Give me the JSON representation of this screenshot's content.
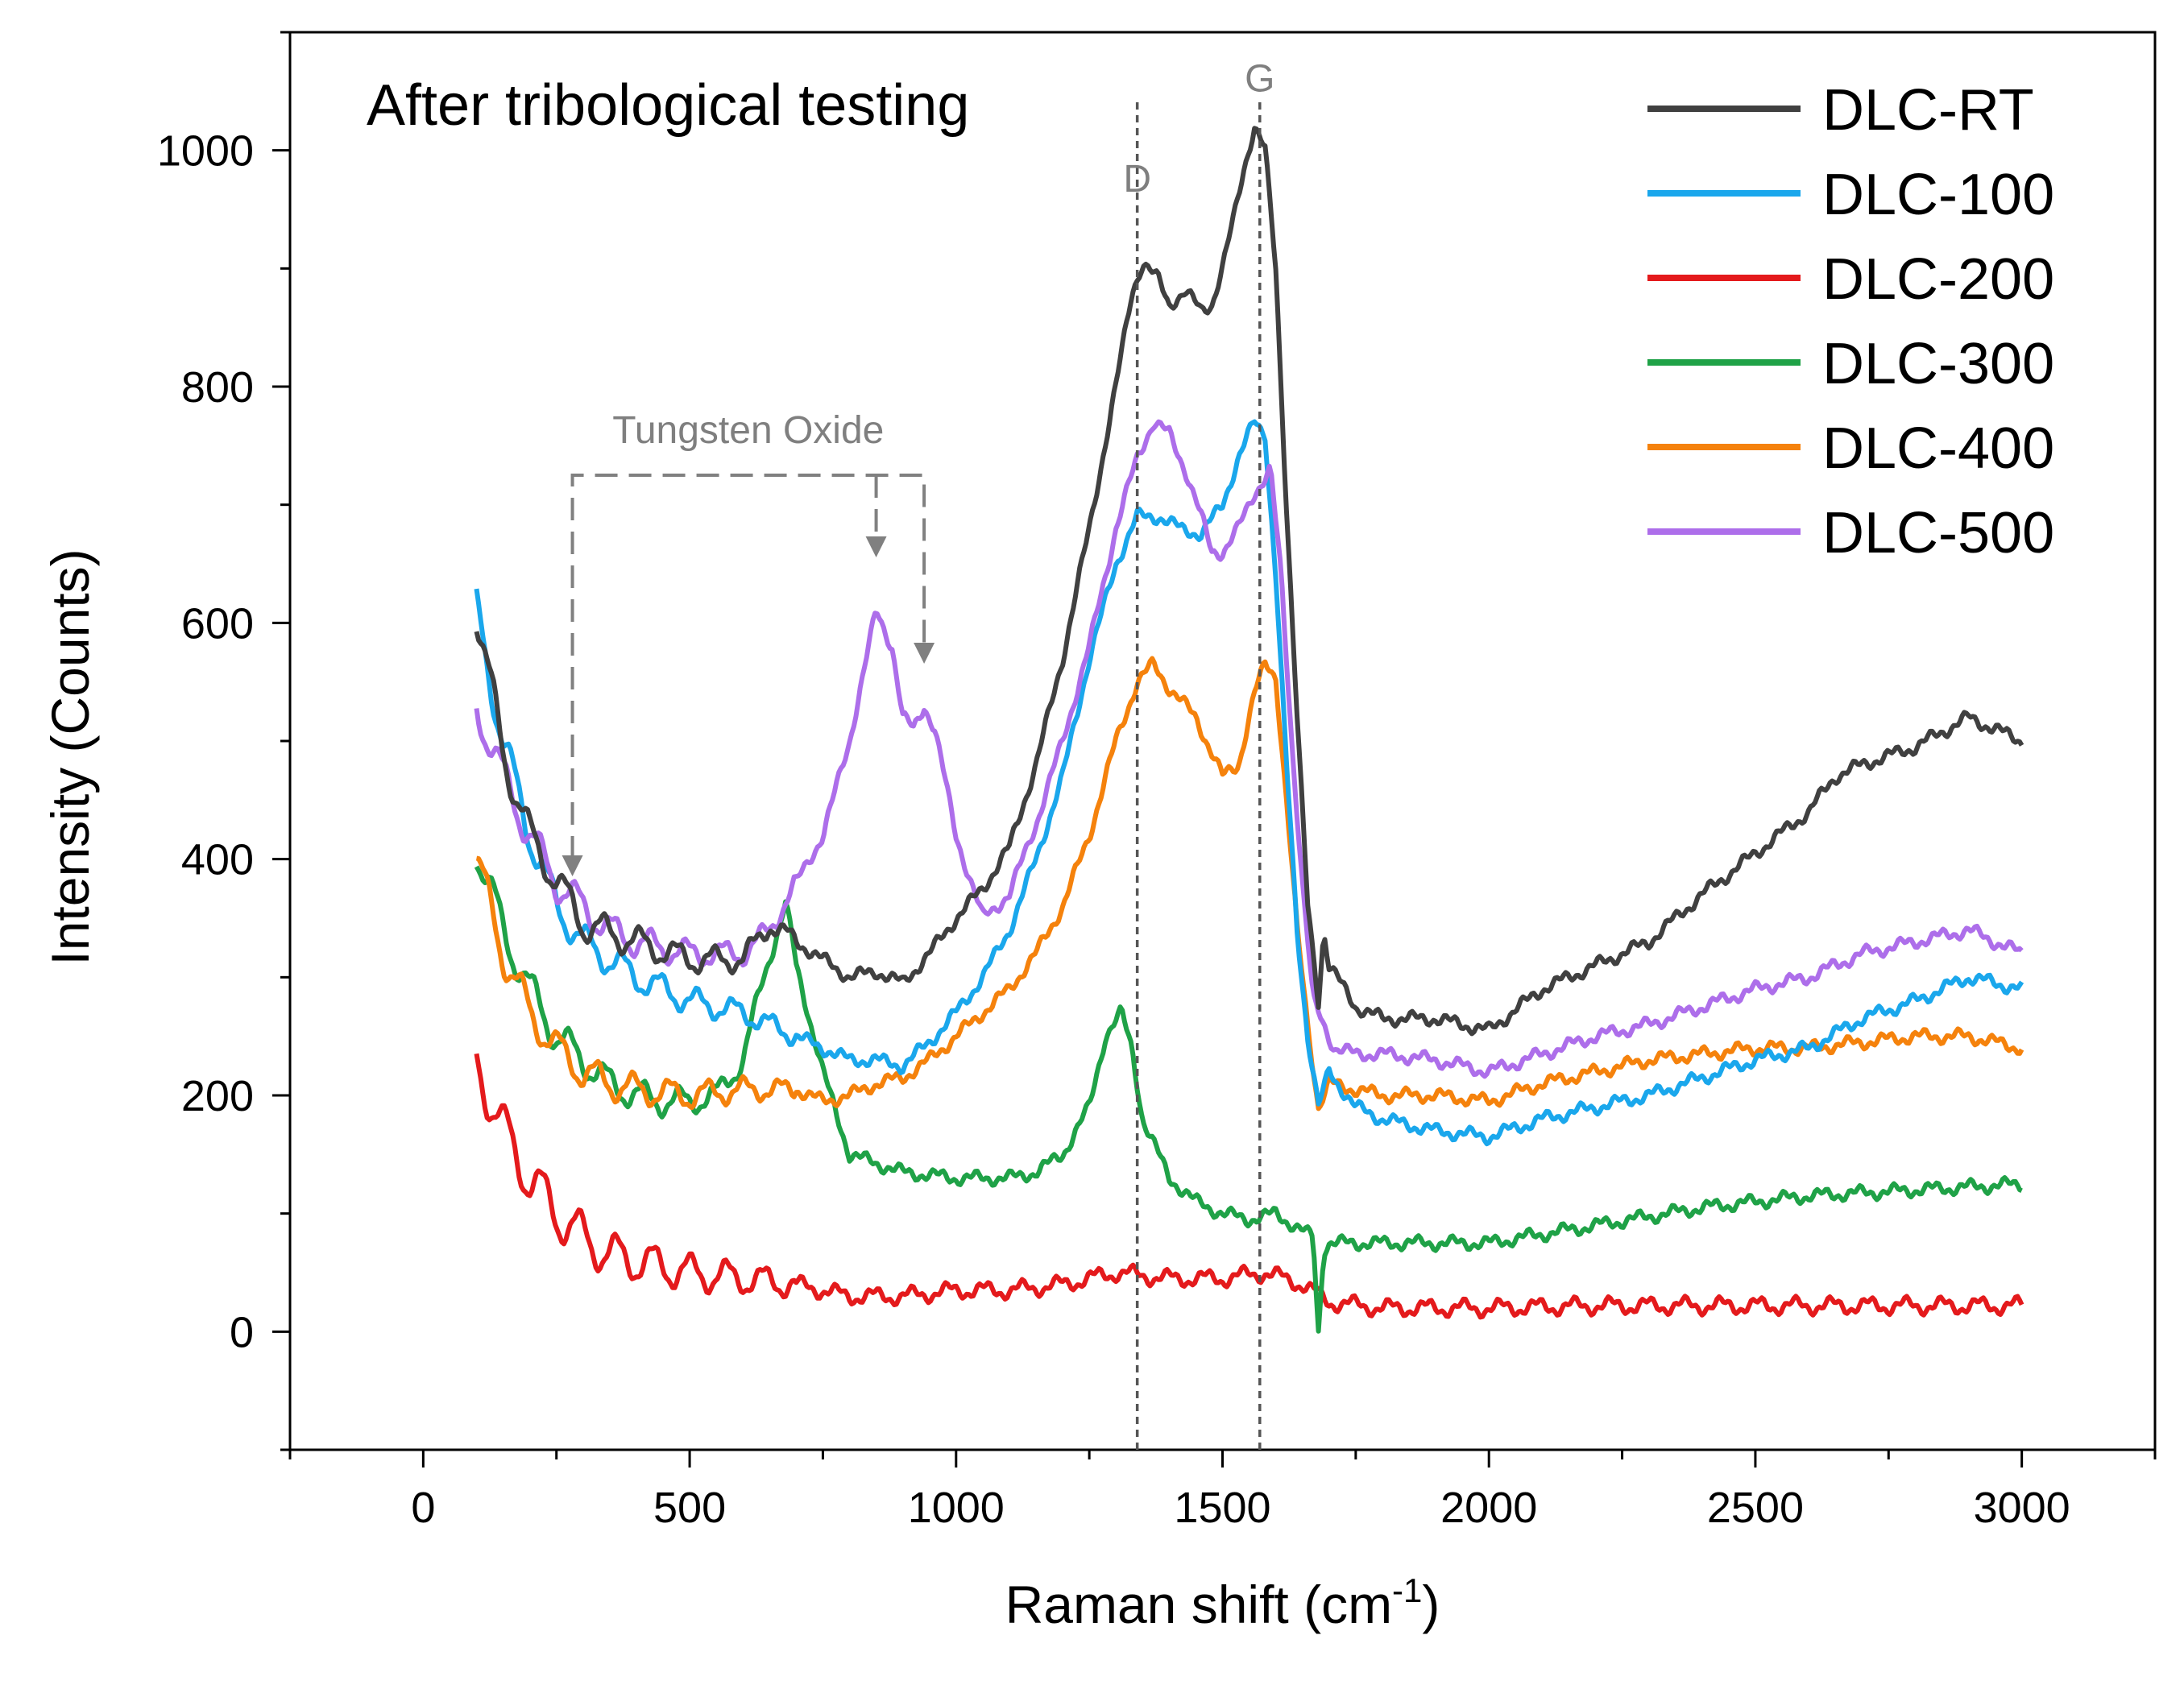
{
  "chart_data": {
    "type": "line",
    "title": "After tribological testing",
    "xlabel": "Raman shift (cm",
    "xlabel_sup": "-1",
    "xlabel_close": ")",
    "ylabel": "Intensity (Counts)",
    "xlim": [
      -250,
      3250
    ],
    "ylim": [
      -100,
      1100
    ],
    "xticks": [
      0,
      500,
      1000,
      1500,
      2000,
      2500,
      3000
    ],
    "xtick_labels": [
      "0",
      "500",
      "1000",
      "1500",
      "2000",
      "2500",
      "3000"
    ],
    "yticks": [
      0,
      200,
      400,
      600,
      800,
      1000
    ],
    "ytick_labels": [
      "0",
      "200",
      "400",
      "600",
      "800",
      "1000"
    ],
    "legend_position": "top-right",
    "grid": false,
    "reference_lines": [
      {
        "label": "D",
        "x": 1340
      },
      {
        "label": "G",
        "x": 1570
      }
    ],
    "annotation": {
      "label": "Tungsten Oxide",
      "bracket_x": [
        280,
        850
      ],
      "bracket_x2": 940,
      "bracket_top_y": 725,
      "targets": [
        {
          "x": 280,
          "y": 380
        },
        {
          "x": 850,
          "y": 650
        },
        {
          "x": 940,
          "y": 560
        }
      ]
    },
    "series": [
      {
        "name": "DLC-RT",
        "color": "#404040",
        "x": [
          100,
          150,
          200,
          300,
          400,
          500,
          600,
          650,
          700,
          800,
          850,
          900,
          950,
          1000,
          1050,
          1100,
          1150,
          1200,
          1250,
          1300,
          1330,
          1350,
          1380,
          1400,
          1430,
          1460,
          1480,
          1500,
          1520,
          1540,
          1560,
          1580,
          1600,
          1620,
          1640,
          1660,
          1680,
          1690,
          1700,
          1750,
          1800,
          1900,
          2000,
          2100,
          2200,
          2300,
          2400,
          2500,
          2600,
          2650,
          2700,
          2800,
          2900,
          3000
        ],
        "y": [
          610,
          490,
          420,
          345,
          330,
          315,
          315,
          345,
          330,
          300,
          305,
          295,
          320,
          350,
          375,
          410,
          480,
          570,
          680,
          800,
          880,
          905,
          890,
          870,
          880,
          865,
          870,
          900,
          940,
          985,
          1020,
          1000,
          900,
          700,
          520,
          360,
          280,
          340,
          310,
          275,
          265,
          265,
          255,
          290,
          310,
          330,
          370,
          405,
          440,
          470,
          480,
          495,
          520,
          500
        ]
      },
      {
        "name": "DLC-100",
        "color": "#1aa7ec",
        "x": [
          100,
          150,
          200,
          250,
          300,
          400,
          500,
          600,
          700,
          800,
          850,
          900,
          950,
          1000,
          1050,
          1100,
          1150,
          1200,
          1250,
          1300,
          1340,
          1380,
          1420,
          1460,
          1500,
          1530,
          1560,
          1580,
          1600,
          1620,
          1640,
          1660,
          1680,
          1700,
          1750,
          1800,
          1900,
          2000,
          2100,
          2200,
          2300,
          2400,
          2500,
          2600,
          2700,
          2800,
          2900,
          3000
        ],
        "y": [
          610,
          500,
          420,
          360,
          330,
          300,
          280,
          270,
          250,
          230,
          230,
          225,
          245,
          270,
          300,
          340,
          400,
          470,
          570,
          650,
          690,
          690,
          680,
          675,
          700,
          740,
          770,
          760,
          640,
          480,
          340,
          250,
          190,
          220,
          190,
          180,
          170,
          165,
          180,
          190,
          200,
          215,
          230,
          240,
          265,
          280,
          300,
          290
        ]
      },
      {
        "name": "DLC-200",
        "color": "#e41a1c",
        "x": [
          100,
          150,
          200,
          250,
          300,
          350,
          400,
          450,
          500,
          600,
          700,
          800,
          900,
          1000,
          1100,
          1200,
          1300,
          1400,
          1500,
          1580,
          1650,
          1700,
          1800,
          1900,
          2000,
          2200,
          2400,
          2600,
          2800,
          3000
        ],
        "y": [
          230,
          170,
          130,
          100,
          80,
          65,
          60,
          55,
          50,
          45,
          40,
          30,
          30,
          35,
          35,
          40,
          50,
          45,
          45,
          50,
          40,
          25,
          20,
          20,
          20,
          22,
          22,
          22,
          22,
          22
        ]
      },
      {
        "name": "DLC-300",
        "color": "#1fa247",
        "x": [
          100,
          150,
          200,
          250,
          300,
          350,
          400,
          450,
          500,
          550,
          600,
          650,
          680,
          700,
          750,
          800,
          900,
          1000,
          1100,
          1150,
          1200,
          1250,
          1280,
          1310,
          1330,
          1350,
          1400,
          1450,
          1500,
          1550,
          1600,
          1650,
          1670,
          1680,
          1690,
          1700,
          1800,
          1900,
          2000,
          2200,
          2400,
          2600,
          2800,
          3000
        ],
        "y": [
          410,
          340,
          290,
          250,
          230,
          210,
          200,
          195,
          195,
          200,
          230,
          320,
          360,
          310,
          220,
          150,
          135,
          130,
          130,
          135,
          150,
          190,
          250,
          270,
          240,
          180,
          130,
          110,
          100,
          95,
          100,
          85,
          80,
          0,
          70,
          75,
          75,
          75,
          75,
          90,
          105,
          115,
          120,
          125
        ]
      },
      {
        "name": "DLC-400",
        "color": "#f5820c",
        "x": [
          100,
          150,
          200,
          250,
          300,
          350,
          400,
          500,
          600,
          700,
          750,
          800,
          850,
          900,
          950,
          1000,
          1050,
          1100,
          1150,
          1200,
          1250,
          1300,
          1340,
          1370,
          1400,
          1450,
          1480,
          1500,
          1530,
          1560,
          1580,
          1600,
          1620,
          1640,
          1660,
          1680,
          1700,
          1750,
          1800,
          1900,
          2000,
          2100,
          2200,
          2300,
          2400,
          2500,
          2600,
          2700,
          2800,
          2900,
          3000
        ],
        "y": [
          400,
          320,
          270,
          240,
          220,
          210,
          205,
          200,
          205,
          205,
          195,
          200,
          210,
          215,
          230,
          250,
          270,
          290,
          320,
          360,
          420,
          500,
          550,
          565,
          545,
          520,
          490,
          470,
          480,
          540,
          565,
          555,
          450,
          340,
          260,
          190,
          210,
          205,
          200,
          200,
          195,
          210,
          220,
          230,
          235,
          240,
          240,
          245,
          250,
          250,
          240
        ]
      },
      {
        "name": "DLC-500",
        "color": "#ad6eea",
        "x": [
          100,
          150,
          200,
          250,
          300,
          350,
          400,
          500,
          600,
          650,
          700,
          750,
          800,
          850,
          880,
          900,
          920,
          940,
          960,
          1000,
          1050,
          1100,
          1150,
          1200,
          1250,
          1300,
          1340,
          1370,
          1400,
          1430,
          1460,
          1480,
          1500,
          1530,
          1560,
          1590,
          1610,
          1630,
          1650,
          1670,
          1690,
          1710,
          1750,
          1800,
          1900,
          2000,
          2100,
          2200,
          2300,
          2400,
          2500,
          2600,
          2700,
          2800,
          2900,
          3000
        ],
        "y": [
          530,
          470,
          420,
          380,
          360,
          340,
          330,
          320,
          320,
          340,
          380,
          420,
          500,
          610,
          580,
          520,
          510,
          530,
          510,
          420,
          350,
          370,
          430,
          500,
          580,
          680,
          740,
          770,
          760,
          730,
          690,
          660,
          660,
          680,
          710,
          730,
          640,
          500,
          380,
          280,
          260,
          240,
          235,
          235,
          230,
          220,
          235,
          250,
          260,
          275,
          290,
          300,
          320,
          330,
          340,
          320
        ]
      }
    ]
  }
}
